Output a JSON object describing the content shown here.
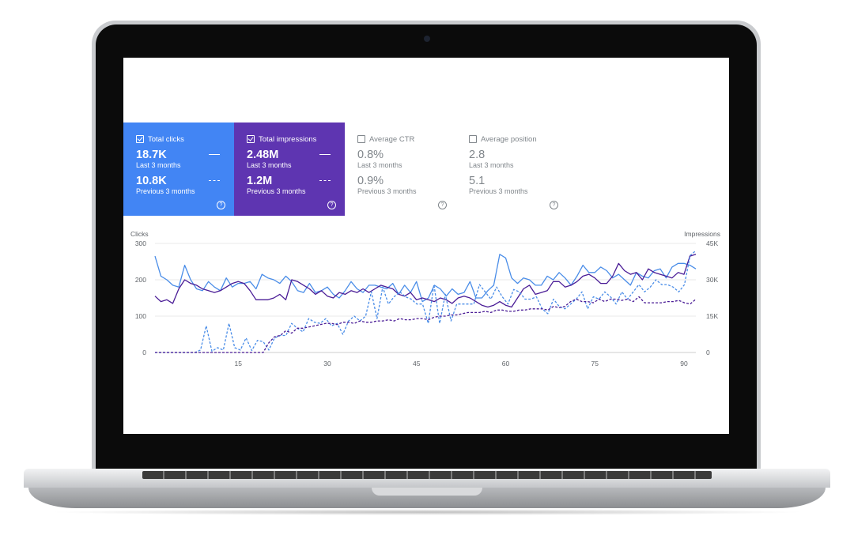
{
  "metrics": [
    {
      "label": "Total clicks",
      "checked": true,
      "value": "18.7K",
      "value_period": "Last 3 months",
      "prev_value": "10.8K",
      "prev_period": "Previous 3 months",
      "help": "?",
      "color": "#4285f4"
    },
    {
      "label": "Total impressions",
      "checked": true,
      "value": "2.48M",
      "value_period": "Last 3 months",
      "prev_value": "1.2M",
      "prev_period": "Previous 3 months",
      "help": "?",
      "color": "#5e35b1"
    },
    {
      "label": "Average CTR",
      "checked": false,
      "value": "0.8%",
      "value_period": "Last 3 months",
      "prev_value": "0.9%",
      "prev_period": "Previous 3 months",
      "help": "?"
    },
    {
      "label": "Average position",
      "checked": false,
      "value": "2.8",
      "value_period": "Last 3 months",
      "prev_value": "5.1",
      "prev_period": "Previous 3 months",
      "help": "?"
    }
  ],
  "chart_data": {
    "type": "line",
    "left_axis_label": "Clicks",
    "right_axis_label": "Impressions",
    "left_ticks": [
      "0",
      "100",
      "200",
      "300"
    ],
    "left_range": [
      0,
      300
    ],
    "right_ticks": [
      "0",
      "15K",
      "30K",
      "45K"
    ],
    "right_range": [
      0,
      45000
    ],
    "x_ticks": [
      "15",
      "30",
      "45",
      "60",
      "75",
      "90"
    ],
    "x_range": [
      1,
      92
    ],
    "grid": true,
    "series": [
      {
        "axis": "left",
        "color": "#4a8de8",
        "dashed": false,
        "values": [
          265,
          210,
          200,
          185,
          180,
          240,
          200,
          175,
          170,
          195,
          180,
          170,
          205,
          180,
          190,
          190,
          195,
          175,
          215,
          205,
          200,
          190,
          210,
          195,
          170,
          165,
          190,
          165,
          170,
          180,
          160,
          150,
          170,
          195,
          175,
          165,
          185,
          185,
          180,
          175,
          190,
          160,
          185,
          165,
          195,
          140,
          150,
          185,
          175,
          155,
          175,
          160,
          165,
          195,
          150,
          150,
          170,
          185,
          270,
          260,
          205,
          190,
          205,
          200,
          185,
          185,
          210,
          200,
          220,
          205,
          185,
          210,
          240,
          220,
          220,
          235,
          225,
          205,
          215,
          200,
          185,
          220,
          210,
          205,
          225,
          230,
          205,
          235,
          245,
          245,
          240,
          230
        ]
      },
      {
        "axis": "left",
        "color": "#4a1c96",
        "dashed": false,
        "values": [
          155,
          140,
          145,
          135,
          175,
          200,
          190,
          185,
          175,
          170,
          165,
          170,
          180,
          190,
          195,
          190,
          170,
          145,
          145,
          145,
          150,
          160,
          145,
          200,
          195,
          185,
          175,
          160,
          170,
          155,
          150,
          165,
          160,
          170,
          165,
          175,
          165,
          175,
          185,
          180,
          175,
          160,
          155,
          165,
          145,
          150,
          145,
          140,
          150,
          145,
          135,
          150,
          155,
          150,
          140,
          130,
          125,
          130,
          140,
          130,
          125,
          150,
          175,
          185,
          160,
          165,
          170,
          195,
          195,
          180,
          185,
          195,
          210,
          215,
          205,
          190,
          190,
          210,
          245,
          225,
          215,
          220,
          200,
          230,
          220,
          215,
          210,
          205,
          220,
          215,
          265,
          270
        ]
      },
      {
        "axis": "right",
        "color": "#4a8de8",
        "dashed": true,
        "values": [
          0,
          0,
          0,
          0,
          0,
          0,
          0,
          0,
          1000,
          11000,
          500,
          2000,
          1000,
          12000,
          2000,
          1000,
          6000,
          800,
          5000,
          4500,
          1000,
          6000,
          7000,
          7000,
          12000,
          10000,
          8500,
          14000,
          12500,
          12000,
          14000,
          11000,
          12000,
          7500,
          13000,
          15000,
          13000,
          15000,
          25000,
          14000,
          27000,
          20000,
          23000,
          25000,
          23000,
          22000,
          20000,
          20000,
          12000,
          28000,
          12000,
          24000,
          13000,
          20000,
          20000,
          20000,
          20000,
          28000,
          25000,
          22000,
          27000,
          23000,
          20000,
          26000,
          25000,
          22000,
          22000,
          23000,
          18000,
          16000,
          22000,
          19000,
          18000,
          20000,
          22000,
          25000,
          18000,
          23000,
          22000,
          25000,
          23000,
          20000,
          25000,
          22000,
          25000,
          28000,
          25000,
          27000,
          30000,
          28000,
          28000,
          27000,
          25000,
          28000,
          40000,
          42000
        ]
      },
      {
        "axis": "right",
        "color": "#4a1c96",
        "dashed": true,
        "values": [
          0,
          0,
          0,
          0,
          0,
          0,
          0,
          0,
          0,
          0,
          0,
          0,
          0,
          0,
          0,
          0,
          0,
          0,
          0,
          0,
          4000,
          6500,
          7000,
          9000,
          8000,
          10000,
          10000,
          10500,
          11000,
          11500,
          12000,
          12000,
          11500,
          12500,
          12500,
          12000,
          13000,
          12500,
          12500,
          13000,
          13000,
          13500,
          13000,
          14000,
          13500,
          13500,
          14000,
          14000,
          13500,
          14500,
          15000,
          15000,
          15500,
          15500,
          16000,
          16500,
          16500,
          16500,
          17000,
          16500,
          17500,
          17500,
          17000,
          17000,
          17500,
          17500,
          18000,
          18000,
          18000,
          17500,
          19000,
          18500,
          19000,
          21000,
          22000,
          21000,
          21000,
          20500,
          22000,
          21000,
          22000,
          22000,
          21500,
          22000,
          21000,
          23000,
          20500,
          20500,
          20500,
          20500,
          21000,
          21000,
          21500,
          20500,
          20000,
          22000
        ]
      }
    ]
  },
  "colors": {
    "clicks": "#4285f4",
    "impressions": "#5e35b1",
    "grid": "#e0e0e0",
    "muted": "#80868b"
  }
}
